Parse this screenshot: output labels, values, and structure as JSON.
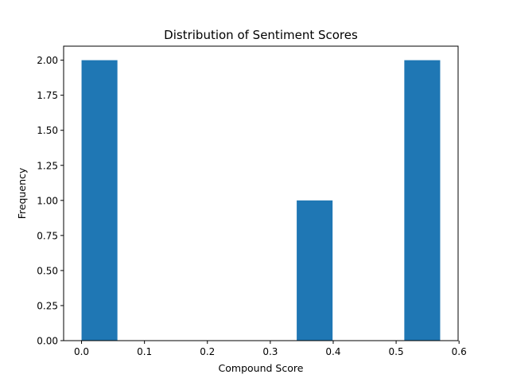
{
  "chart_data": {
    "type": "bar",
    "title": "Distribution of Sentiment Scores",
    "xlabel": "Compound Score",
    "ylabel": "Frequency",
    "xlim": [
      -0.0285,
      0.5985
    ],
    "ylim": [
      0,
      2.1
    ],
    "bar_color": "#1f77b4",
    "grid": false,
    "bins": [
      {
        "x0": 0.0,
        "x1": 0.057,
        "value": 2
      },
      {
        "x0": 0.057,
        "x1": 0.114,
        "value": 0
      },
      {
        "x0": 0.114,
        "x1": 0.171,
        "value": 0
      },
      {
        "x0": 0.171,
        "x1": 0.228,
        "value": 0
      },
      {
        "x0": 0.228,
        "x1": 0.285,
        "value": 0
      },
      {
        "x0": 0.285,
        "x1": 0.342,
        "value": 0
      },
      {
        "x0": 0.342,
        "x1": 0.399,
        "value": 1
      },
      {
        "x0": 0.399,
        "x1": 0.456,
        "value": 0
      },
      {
        "x0": 0.456,
        "x1": 0.513,
        "value": 0
      },
      {
        "x0": 0.513,
        "x1": 0.57,
        "value": 2
      }
    ],
    "xticks": [
      {
        "value": 0.0,
        "label": "0.0"
      },
      {
        "value": 0.1,
        "label": "0.1"
      },
      {
        "value": 0.2,
        "label": "0.2"
      },
      {
        "value": 0.3,
        "label": "0.3"
      },
      {
        "value": 0.4,
        "label": "0.4"
      },
      {
        "value": 0.5,
        "label": "0.5"
      },
      {
        "value": 0.6,
        "label": "0.6"
      }
    ],
    "yticks": [
      {
        "value": 0.0,
        "label": "0.00"
      },
      {
        "value": 0.25,
        "label": "0.25"
      },
      {
        "value": 0.5,
        "label": "0.50"
      },
      {
        "value": 0.75,
        "label": "0.75"
      },
      {
        "value": 1.0,
        "label": "1.00"
      },
      {
        "value": 1.25,
        "label": "1.25"
      },
      {
        "value": 1.5,
        "label": "1.50"
      },
      {
        "value": 1.75,
        "label": "1.75"
      },
      {
        "value": 2.0,
        "label": "2.00"
      }
    ]
  }
}
